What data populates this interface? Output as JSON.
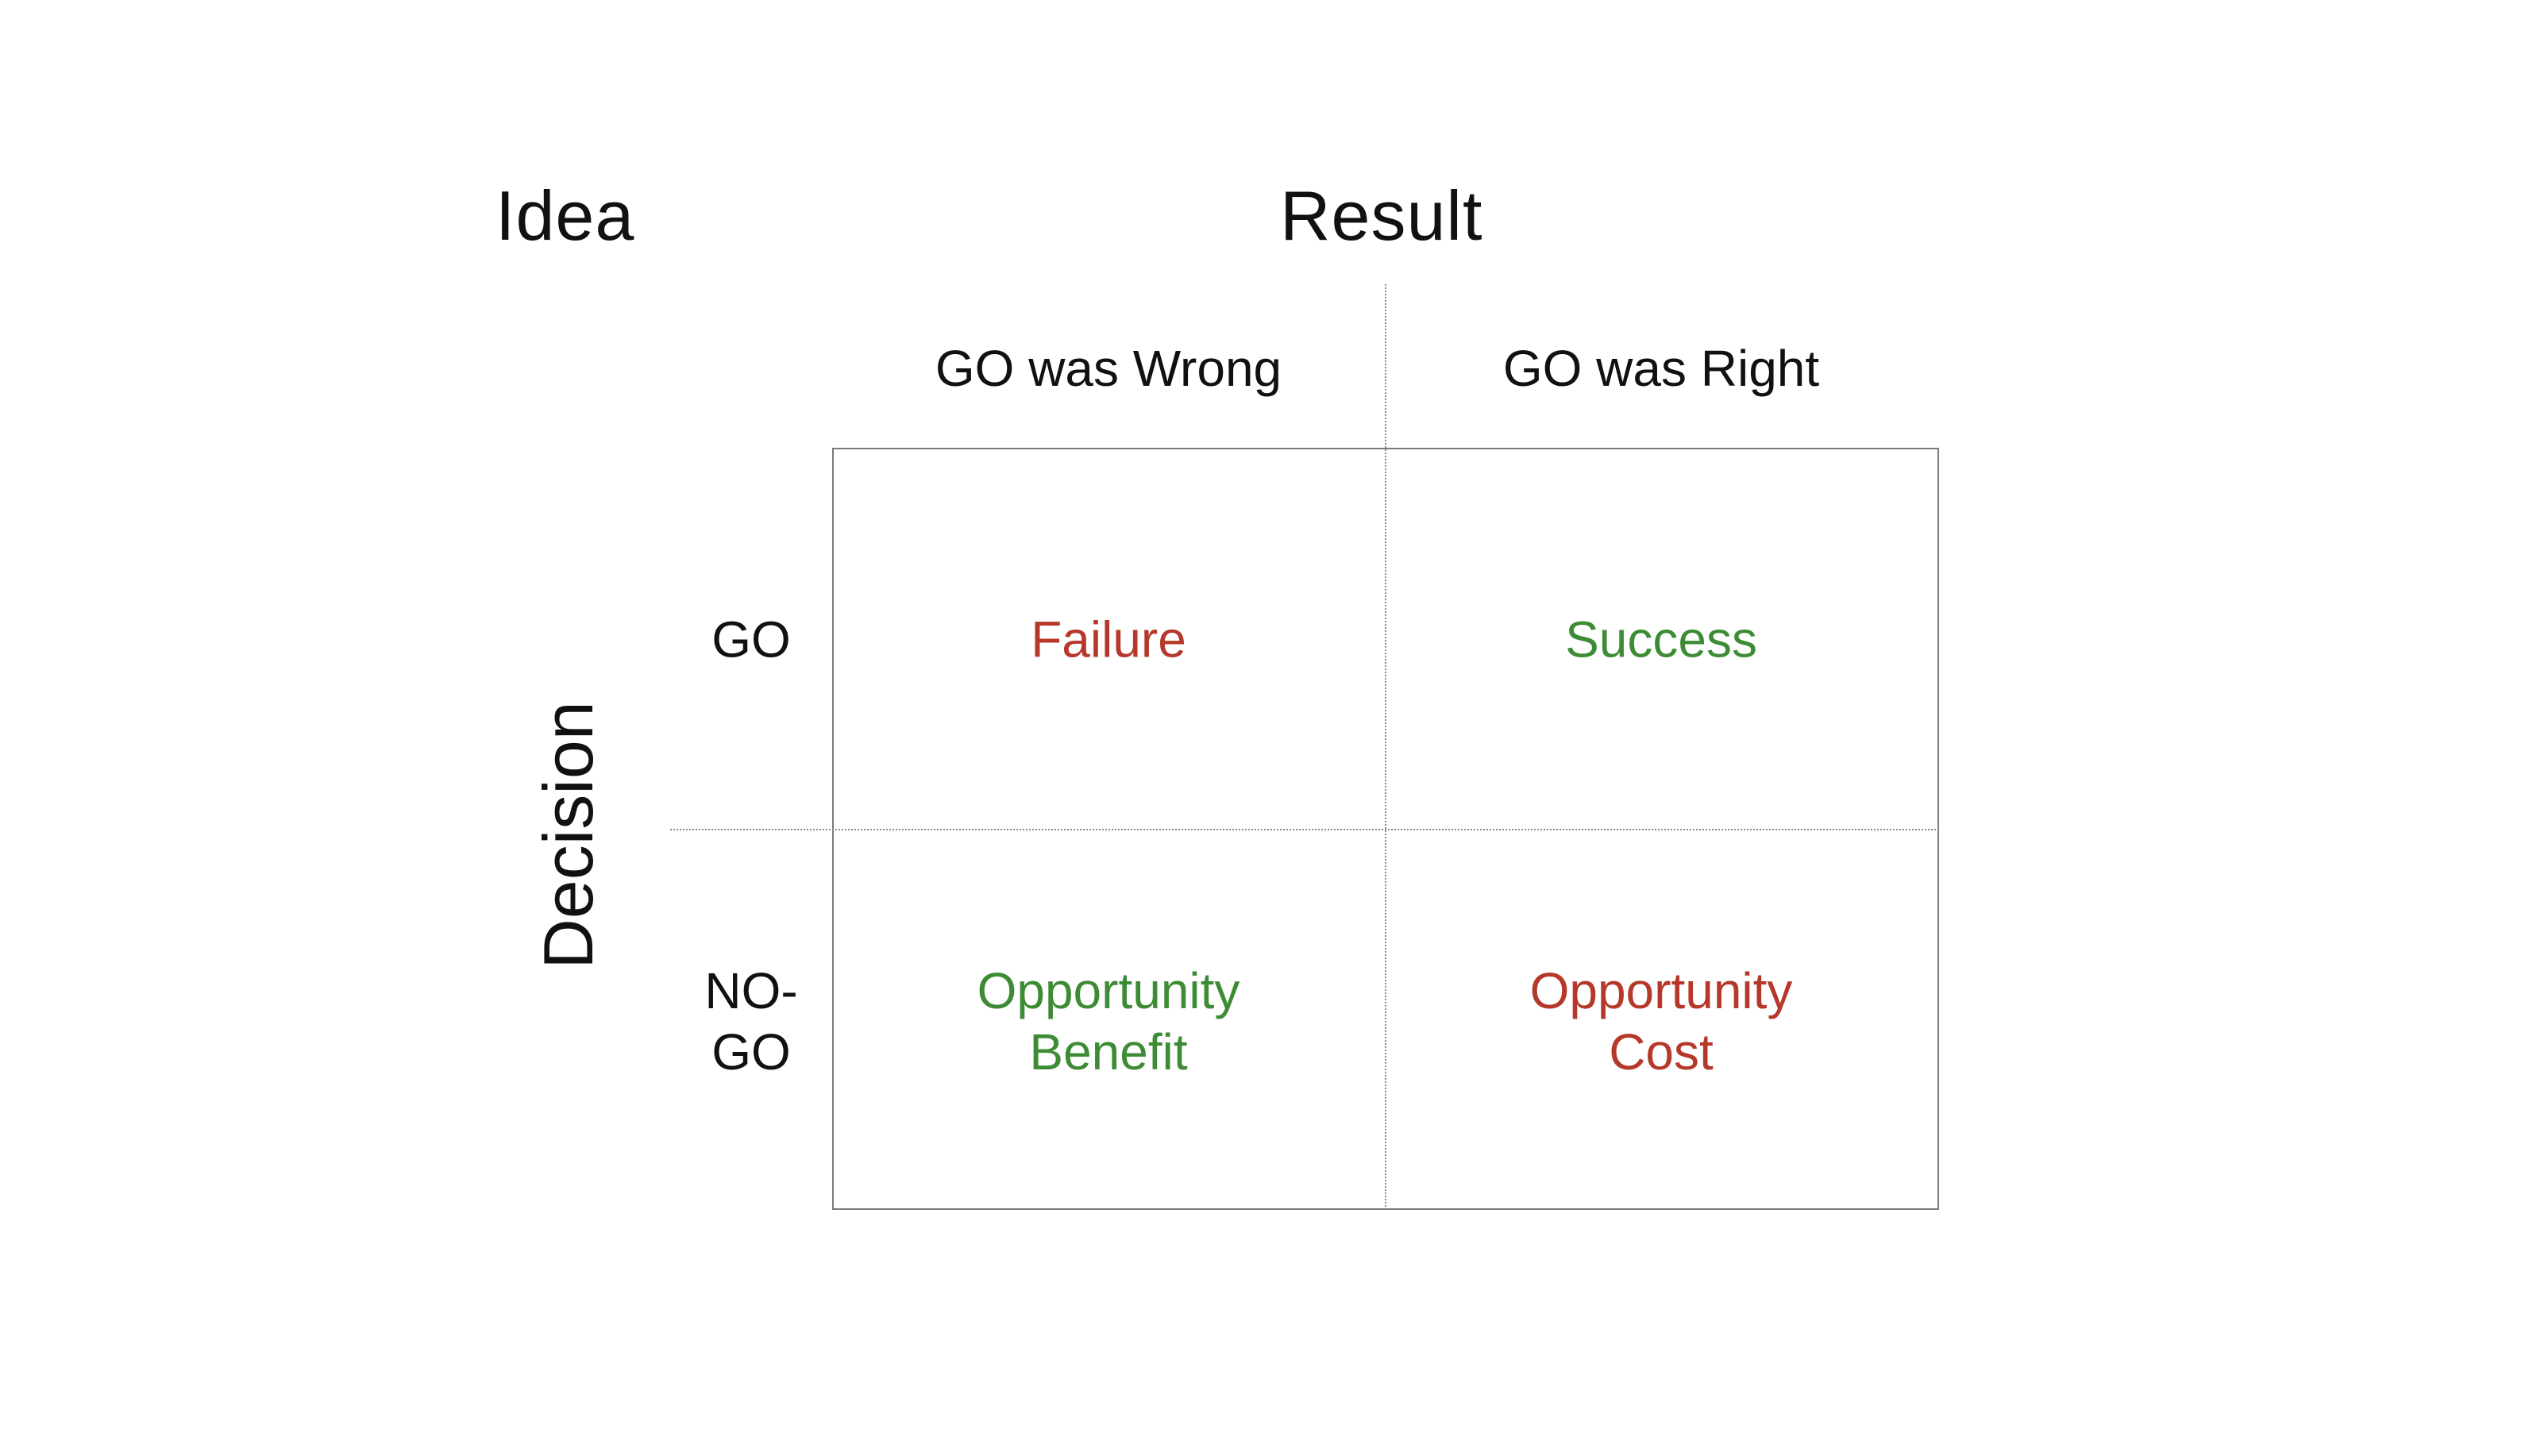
{
  "matrix": {
    "corner_label": "Idea",
    "top_axis_label": "Result",
    "left_axis_label": "Decision",
    "columns": [
      {
        "label": "GO was Wrong"
      },
      {
        "label": "GO was Right"
      }
    ],
    "rows": [
      {
        "label": "GO"
      },
      {
        "label": "NO-\nGO"
      }
    ],
    "cells": {
      "go_wrong": {
        "text": "Failure",
        "color": "#b5382a"
      },
      "go_right": {
        "text": "Success",
        "color": "#3e8b35"
      },
      "nogo_wrong": {
        "text": "Opportunity\nBenefit",
        "color": "#3e8b35"
      },
      "nogo_right": {
        "text": "Opportunity\nCost",
        "color": "#b5382a"
      }
    },
    "colors": {
      "text": "#111111",
      "grid_line": "#8a8a8a",
      "negative": "#b5382a",
      "positive": "#3e8b35"
    }
  }
}
